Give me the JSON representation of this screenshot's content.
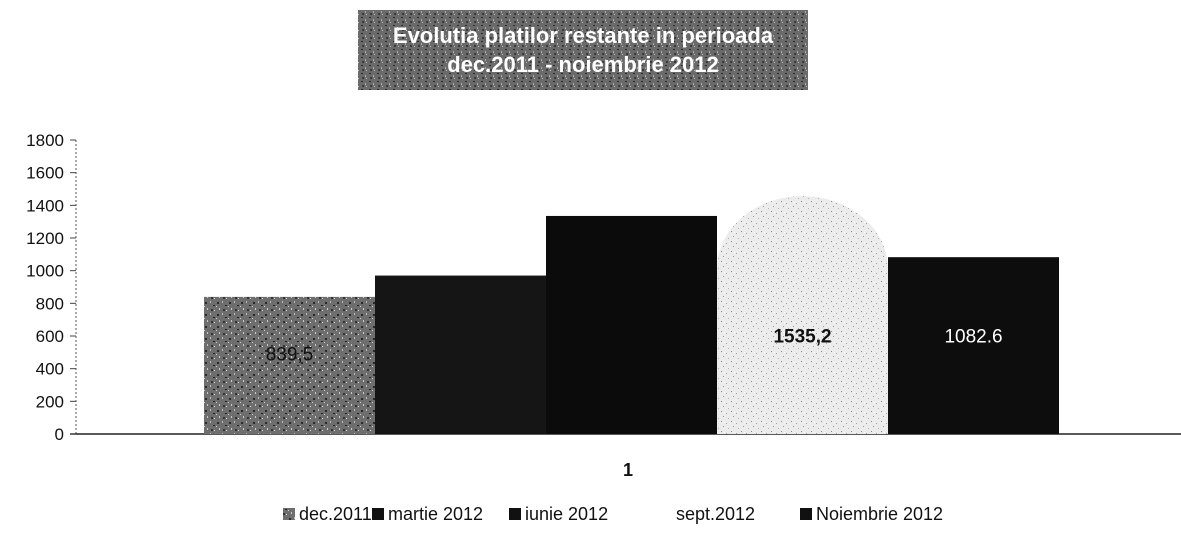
{
  "chart_data": {
    "type": "bar",
    "title_lines": [
      "Evolutia platilor restante in perioada",
      "dec.2011 - noiembrie 2012"
    ],
    "xlabel": "",
    "ylabel": "",
    "ylim": [
      0,
      1800
    ],
    "yticks": [
      0,
      200,
      400,
      600,
      800,
      1000,
      1200,
      1400,
      1600,
      1800
    ],
    "categories": [
      "1"
    ],
    "series": [
      {
        "name": "dec.2011",
        "values": [
          839.5
        ],
        "label": "839,5",
        "color": "#707070",
        "pattern": "speckle-dark"
      },
      {
        "name": "martie 2012",
        "values": [
          970
        ],
        "label": "",
        "color": "#151515",
        "pattern": "solid"
      },
      {
        "name": "iunie 2012",
        "values": [
          1335
        ],
        "label": "",
        "color": "#0b0b0b",
        "pattern": "solid"
      },
      {
        "name": "sept.2012",
        "values": [
          1535.2
        ],
        "label": "1535,2",
        "color": "#e6e6e6",
        "pattern": "speckle-light"
      },
      {
        "name": "Noiembrie 2012",
        "values": [
          1082.6
        ],
        "label": "1082.6",
        "color": "#0d0d0d",
        "pattern": "solid"
      }
    ],
    "grid": false,
    "legend_position": "bottom"
  }
}
